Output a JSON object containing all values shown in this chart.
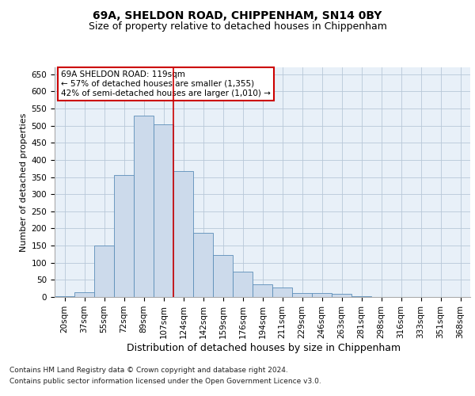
{
  "title1": "69A, SHELDON ROAD, CHIPPENHAM, SN14 0BY",
  "title2": "Size of property relative to detached houses in Chippenham",
  "xlabel": "Distribution of detached houses by size in Chippenham",
  "ylabel": "Number of detached properties",
  "footer1": "Contains HM Land Registry data © Crown copyright and database right 2024.",
  "footer2": "Contains public sector information licensed under the Open Government Licence v3.0.",
  "annotation_line1": "69A SHELDON ROAD: 119sqm",
  "annotation_line2": "← 57% of detached houses are smaller (1,355)",
  "annotation_line3": "42% of semi-detached houses are larger (1,010) →",
  "bar_color": "#ccdaeb",
  "bar_edge_color": "#5b8db8",
  "vline_color": "#cc0000",
  "annotation_box_color": "#cc0000",
  "categories": [
    "20sqm",
    "37sqm",
    "55sqm",
    "72sqm",
    "89sqm",
    "107sqm",
    "124sqm",
    "142sqm",
    "159sqm",
    "176sqm",
    "194sqm",
    "211sqm",
    "229sqm",
    "246sqm",
    "263sqm",
    "281sqm",
    "298sqm",
    "316sqm",
    "333sqm",
    "351sqm",
    "368sqm"
  ],
  "values": [
    3,
    15,
    150,
    355,
    530,
    503,
    368,
    187,
    122,
    75,
    38,
    27,
    12,
    12,
    10,
    2,
    0,
    0,
    0,
    0,
    0
  ],
  "vline_position": 5.5,
  "ylim": [
    0,
    670
  ],
  "yticks": [
    0,
    50,
    100,
    150,
    200,
    250,
    300,
    350,
    400,
    450,
    500,
    550,
    600,
    650
  ],
  "bg_color": "#e8f0f8",
  "grid_color": "#b8c8d8",
  "title1_fontsize": 10,
  "title2_fontsize": 9,
  "xlabel_fontsize": 9,
  "ylabel_fontsize": 8,
  "tick_fontsize": 7.5,
  "footer_fontsize": 6.5,
  "annotation_fontsize": 7.5
}
